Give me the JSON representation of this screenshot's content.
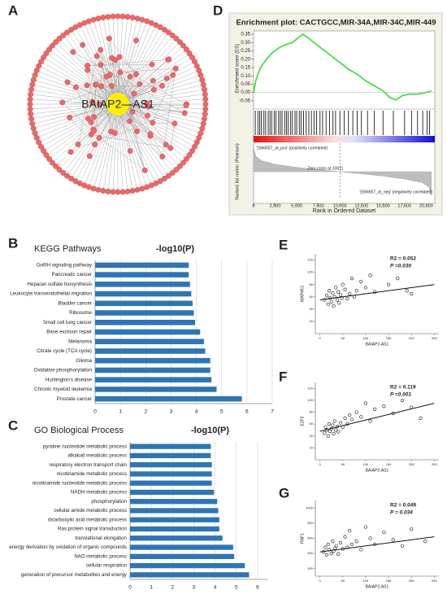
{
  "panel_labels": {
    "a": "A",
    "b": "B",
    "c": "C",
    "d": "D",
    "e": "E",
    "f": "F",
    "g": "G"
  },
  "network": {
    "center_label": "BAIAP2—AS1"
  },
  "chart_data": [
    {
      "type": "line",
      "title": "Enrichment plot: CACTGCC,MIR-34A,MIR-34C,MIR-449",
      "ylabel": "Enrichment score (ES)",
      "metric_ylabel": "Ranked list metric (Pearson)",
      "xlabel": "Rank in Ordered Dataset",
      "color": "#33dd33",
      "x": [
        0,
        300,
        800,
        1500,
        2200,
        3000,
        3800,
        4500,
        5200,
        5700,
        6300,
        7000,
        8000,
        9000,
        10000,
        11000,
        12000,
        13000,
        14000,
        15000,
        15800,
        16500,
        17200,
        18000,
        19000,
        20000,
        20600
      ],
      "values": [
        0,
        0.08,
        0.15,
        0.2,
        0.24,
        0.27,
        0.29,
        0.3,
        0.33,
        0.35,
        0.33,
        0.3,
        0.26,
        0.22,
        0.18,
        0.14,
        0.11,
        0.07,
        0.04,
        0.01,
        -0.03,
        -0.045,
        -0.02,
        -0.01,
        -0.01,
        0,
        0.01
      ],
      "xlim": [
        0,
        21000
      ],
      "xticks": [
        0,
        {
          "value": 2500,
          "label": "2,500"
        },
        {
          "value": 5000,
          "label": "5,000"
        },
        {
          "value": 7500,
          "label": "7,500"
        },
        {
          "value": 10000,
          "label": "10,000"
        },
        {
          "value": 12500,
          "label": "12,500"
        },
        {
          "value": 15000,
          "label": "15,000"
        },
        {
          "value": 17500,
          "label": "17,500"
        },
        {
          "value": 20000,
          "label": "20,000"
        }
      ],
      "ylim": [
        -0.08,
        0.37
      ],
      "yticks": [
        -0.05,
        {
          "value": 0,
          "label": "0.00"
        },
        0.05,
        {
          "value": 0.1,
          "label": "0.10"
        },
        0.15,
        {
          "value": 0.2,
          "label": "0.20"
        },
        0.25,
        {
          "value": 0.3,
          "label": "0.30"
        },
        0.35
      ],
      "hits": [
        200,
        500,
        700,
        900,
        1200,
        1400,
        1700,
        1900,
        2100,
        2400,
        2600,
        2900,
        3100,
        3300,
        3600,
        3800,
        4000,
        4300,
        4500,
        4800,
        5000,
        5300,
        5500,
        5800,
        6100,
        6400,
        6700,
        7000,
        7300,
        7700,
        8000,
        8400,
        8800,
        9200,
        9500,
        10000,
        10500,
        11000,
        11500,
        12000,
        12500,
        13200,
        14000,
        15000,
        16200,
        17500,
        18300,
        19000,
        19600,
        20100,
        20400
      ],
      "metric_x": [
        0,
        300,
        1000,
        2500,
        5000,
        7500,
        10011,
        12500,
        15000,
        17500,
        19500,
        20300,
        20600
      ],
      "metric_values": [
        0.55,
        0.35,
        0.25,
        0.17,
        0.1,
        0.05,
        0,
        -0.05,
        -0.1,
        -0.17,
        -0.25,
        -0.35,
        -0.55
      ],
      "metric_ylim": [
        -0.6,
        0.6
      ],
      "zero_cross": 10011,
      "annotations": [
        "'1566557_at_pos' (positively correlated)",
        "Zero cross at 10011",
        "'1566557_at_neg' (negatively correlated)"
      ]
    },
    {
      "type": "bar",
      "orientation": "horizontal",
      "title": "KEGG Pathways",
      "axis_title": "-log10(P)",
      "color": "#2e75b6",
      "grid": true,
      "categories": [
        "GnRH signaling pathway",
        "Pancreatic cancer",
        "Heparan sulfate biosynthesis",
        "Leukocyte transendothelial migration",
        "Bladder cancer",
        "Ribosome",
        "Small cell lung cancer",
        "Base excision repair",
        "Melanoma",
        "Citrate cycle (TCA cycle)",
        "Glioma",
        "Oxidative phosphorylation",
        "Huntington's disease",
        "Chronic myeloid leukemia",
        "Prostate cancer"
      ],
      "values": [
        3.7,
        3.7,
        3.75,
        3.8,
        3.85,
        3.9,
        3.95,
        4.15,
        4.3,
        4.35,
        4.55,
        4.55,
        4.6,
        4.8,
        5.8
      ],
      "xlim": [
        0,
        7
      ],
      "xticks": [
        0,
        1,
        2,
        3,
        4,
        5,
        6,
        7
      ]
    },
    {
      "type": "bar",
      "orientation": "horizontal",
      "title": "GO Biological Process",
      "axis_title": "-log10(P)",
      "color": "#2e75b6",
      "grid": true,
      "categories": [
        "pyridine nucleotide metabolic process",
        "alkaloid metabolic process",
        "respiratory electron transport chain",
        "nicotinamide metabolic process",
        "nicotinamide nucleotide metabolic process",
        "NADH metabolic process",
        "phosphorylation",
        "cellular amide metabolic process",
        "dicarboxylic acid metabolic process",
        "Ras protein signal transduction",
        "translational elongation",
        "energy derivation by oxidation of organic compounds",
        "NAD metabolic process",
        "cellular respiration",
        "generation of precursor metabolites and energy"
      ],
      "values": [
        3.8,
        3.8,
        3.85,
        3.85,
        3.85,
        3.95,
        4.1,
        4.15,
        4.2,
        4.2,
        4.35,
        4.85,
        4.9,
        5.4,
        5.6
      ],
      "xlim": [
        0,
        6.5
      ],
      "xticks": [
        0,
        1,
        2,
        3,
        4,
        5,
        6
      ]
    },
    {
      "type": "scatter",
      "xlabel": "BAIAP2-AS1",
      "ylabel": "MAP4K3",
      "annotations": [
        "R2 = 0.052",
        "P =0.030"
      ],
      "x": [
        10,
        15,
        18,
        20,
        22,
        25,
        28,
        30,
        32,
        35,
        38,
        40,
        42,
        45,
        48,
        50,
        55,
        60,
        65,
        70,
        75,
        80,
        90,
        100,
        110,
        120,
        150,
        170,
        190,
        200
      ],
      "values": [
        55,
        62,
        48,
        70,
        58,
        52,
        66,
        45,
        60,
        75,
        55,
        68,
        50,
        63,
        58,
        80,
        72,
        57,
        65,
        90,
        60,
        70,
        85,
        75,
        95,
        68,
        80,
        90,
        70,
        65
      ],
      "fit": {
        "x": [
          0,
          250
        ],
        "y": [
          55,
          80
        ]
      },
      "xlim": [
        -10,
        260
      ],
      "xticks": [
        0,
        50,
        100,
        150,
        200,
        250
      ],
      "ylim": [
        0,
        130
      ],
      "yticks": [
        20,
        40,
        60,
        80,
        100,
        120
      ]
    },
    {
      "type": "scatter",
      "xlabel": "BAIAP2-AS1",
      "ylabel": "E2F3",
      "annotations": [
        "R2 = 0.119",
        "P =0.001"
      ],
      "x": [
        10,
        12,
        15,
        18,
        20,
        22,
        25,
        28,
        30,
        32,
        35,
        38,
        40,
        45,
        50,
        55,
        60,
        65,
        70,
        80,
        90,
        100,
        110,
        120,
        140,
        160,
        180,
        200,
        220
      ],
      "values": [
        45,
        55,
        50,
        40,
        60,
        48,
        52,
        58,
        44,
        65,
        50,
        56,
        47,
        62,
        55,
        70,
        60,
        75,
        68,
        80,
        72,
        95,
        65,
        85,
        90,
        78,
        100,
        88,
        70
      ],
      "fit": {
        "x": [
          0,
          250
        ],
        "y": [
          48,
          95
        ]
      },
      "xlim": [
        -10,
        260
      ],
      "xticks": [
        0,
        50,
        100,
        150,
        200,
        250
      ],
      "ylim": [
        0,
        130
      ],
      "yticks": [
        20,
        40,
        60,
        80,
        100,
        120
      ]
    },
    {
      "type": "scatter",
      "xlabel": "BAIAP2-AS1",
      "ylabel": "RAF1",
      "annotations": [
        "R2 = 0.049",
        "P = 0.034"
      ],
      "x": [
        8,
        12,
        15,
        18,
        20,
        25,
        28,
        30,
        33,
        36,
        40,
        45,
        50,
        55,
        60,
        65,
        70,
        80,
        90,
        100,
        110,
        120,
        140,
        160,
        180,
        200,
        230
      ],
      "values": [
        420,
        480,
        380,
        520,
        450,
        400,
        560,
        430,
        470,
        500,
        390,
        540,
        460,
        620,
        480,
        700,
        520,
        560,
        450,
        750,
        600,
        520,
        680,
        580,
        500,
        720,
        560
      ],
      "fit": {
        "x": [
          0,
          250
        ],
        "y": [
          420,
          620
        ]
      },
      "xlim": [
        -10,
        260
      ],
      "xticks": [
        0,
        50,
        100,
        150,
        200,
        250
      ],
      "ylim": [
        100,
        1100
      ],
      "yticks": [
        200,
        400,
        600,
        800,
        1000
      ]
    }
  ]
}
